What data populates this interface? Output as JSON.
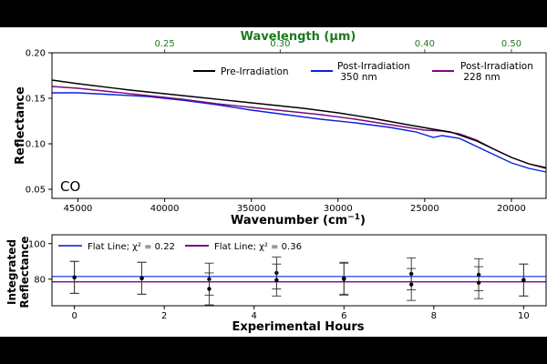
{
  "colors": {
    "pre": "#000000",
    "post350": "#0a1ee0",
    "post228": "#7a0a7a",
    "wavelength_axis": "#1a7a1a",
    "flat350": "#3a4ee8",
    "flat228": "#7a0a7a"
  },
  "chart_data": [
    {
      "type": "line",
      "title": "",
      "annotation": "CO",
      "xlabel": "Wavenumber (cm⁻¹)",
      "ylabel": "Reflectance",
      "top_axis_label": "Wavelength (µm)",
      "xlim": [
        46500,
        18000
      ],
      "ylim": [
        0.04,
        0.2
      ],
      "xticks": [
        45000,
        40000,
        35000,
        30000,
        25000,
        20000
      ],
      "xtick_labels": [
        "45000",
        "40000",
        "35000",
        "30000",
        "25000",
        "20000"
      ],
      "yticks": [
        0.05,
        0.1,
        0.15,
        0.2
      ],
      "ytick_labels": [
        "0.05",
        "0.10",
        "0.15",
        "0.20"
      ],
      "top_ticks_um": [
        0.25,
        0.3,
        0.4,
        0.5
      ],
      "top_tick_labels": [
        "0.25",
        "0.30",
        "0.40",
        "0.50"
      ],
      "legend": [
        "Pre-Irradiation",
        "Post-Irradiation\n 350 nm",
        "Post-Irradiation\n 228 nm"
      ],
      "series": [
        {
          "name": "Pre-Irradiation",
          "x": [
            46500,
            45000,
            42000,
            40000,
            38000,
            36000,
            34000,
            32000,
            30000,
            28000,
            26000,
            24500,
            23500,
            22000,
            21000,
            20000,
            19000,
            18000
          ],
          "y": [
            0.17,
            0.166,
            0.159,
            0.155,
            0.151,
            0.147,
            0.143,
            0.139,
            0.134,
            0.128,
            0.121,
            0.116,
            0.113,
            0.103,
            0.094,
            0.085,
            0.078,
            0.073
          ]
        },
        {
          "name": "Post-Irradiation 350 nm",
          "x": [
            46500,
            45000,
            43000,
            41000,
            39000,
            37000,
            35000,
            33000,
            31000,
            29000,
            27000,
            25500,
            24500,
            24000,
            23000,
            22000,
            21000,
            20000,
            19000,
            18000
          ],
          "y": [
            0.156,
            0.156,
            0.154,
            0.152,
            0.148,
            0.143,
            0.137,
            0.132,
            0.127,
            0.123,
            0.118,
            0.113,
            0.107,
            0.109,
            0.106,
            0.097,
            0.088,
            0.079,
            0.073,
            0.069
          ]
        },
        {
          "name": "Post-Irradiation 228 nm",
          "x": [
            46500,
            45000,
            43000,
            41000,
            39000,
            37000,
            35000,
            33000,
            31000,
            29000,
            27000,
            25000,
            24000,
            23000,
            22000,
            21000,
            20000,
            19000,
            18000
          ],
          "y": [
            0.163,
            0.161,
            0.157,
            0.153,
            0.149,
            0.144,
            0.14,
            0.136,
            0.132,
            0.127,
            0.121,
            0.115,
            0.114,
            0.111,
            0.104,
            0.094,
            0.085,
            0.078,
            0.074
          ]
        }
      ]
    },
    {
      "type": "scatter",
      "title": "",
      "xlabel": "Experimental Hours",
      "ylabel": "Integrated\nReflectance",
      "xlim": [
        -0.5,
        10.5
      ],
      "ylim": [
        65,
        105
      ],
      "xticks": [
        0,
        2,
        4,
        6,
        8,
        10
      ],
      "xtick_labels": [
        "0",
        "2",
        "4",
        "6",
        "8",
        "10"
      ],
      "yticks": [
        80,
        100
      ],
      "ytick_labels": [
        "80",
        "100"
      ],
      "legend": [
        "Flat Line; χ² = 0.22",
        "Flat Line; χ² = 0.36"
      ],
      "flat_lines": [
        {
          "name": "Flat Line; χ² = 0.22",
          "value": 81.5
        },
        {
          "name": "Flat Line; χ² = 0.36",
          "value": 78.5
        }
      ],
      "series": [
        {
          "name": "350 nm",
          "x": [
            0,
            1.5,
            3,
            4.5,
            6,
            7.5,
            9,
            10
          ],
          "y": [
            81,
            80.5,
            80,
            83.5,
            80.5,
            83,
            82.5,
            79.5
          ],
          "err": [
            9,
            9,
            9,
            9,
            9,
            9,
            9,
            9
          ]
        },
        {
          "name": "228 nm",
          "x": [
            0,
            1.5,
            3,
            4.5,
            6,
            7.5,
            9,
            10
          ],
          "y": [
            81,
            80.5,
            74.5,
            79.5,
            80,
            77,
            78,
            79.5
          ],
          "err": [
            9,
            9,
            9,
            9,
            9,
            9,
            9,
            9
          ]
        }
      ]
    }
  ]
}
